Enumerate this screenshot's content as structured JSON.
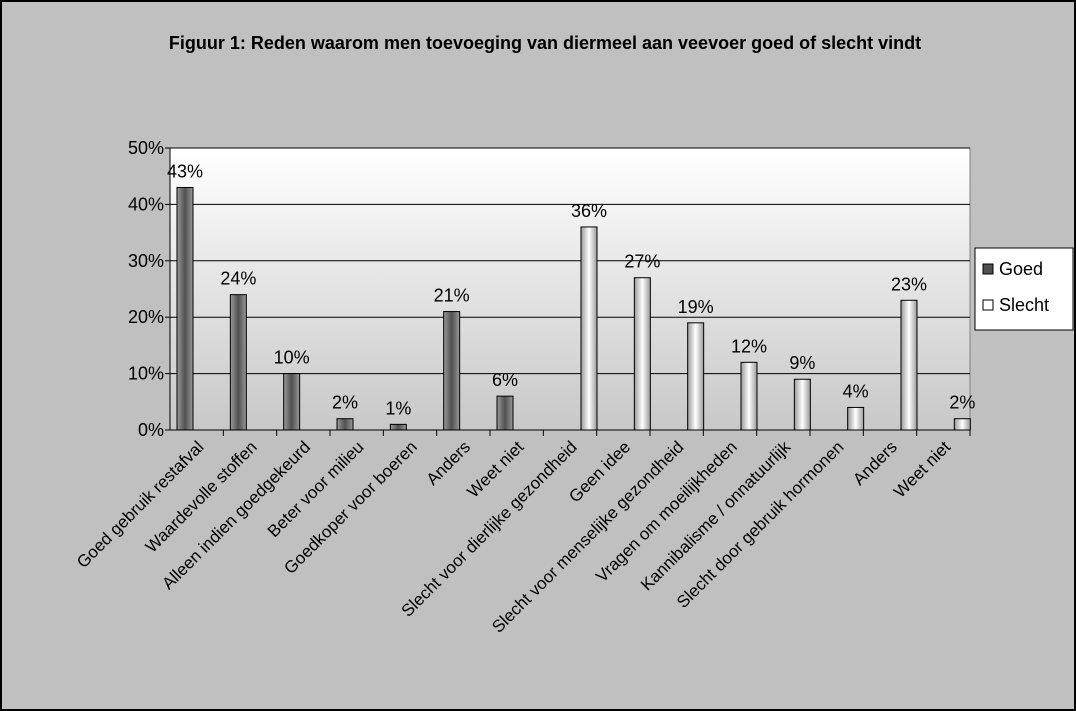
{
  "chart_data": {
    "type": "bar",
    "title": "Figuur 1: Reden waarom men toevoeging van diermeel aan veevoer goed of slecht vindt",
    "categories": [
      "Goed gebruik restafval",
      "Waardevolle stoffen",
      "Alleen indien goedgekeurd",
      "Beter voor milieu",
      "Goedkoper voor boeren",
      "Anders",
      "Weet niet",
      "Slecht voor dierlijke gezondheid",
      "Geen idee",
      "Slecht voor menselijke gezondheid",
      "Vragen om moeilijkheden",
      "Kannibalisme / onnatuurlijk",
      "Slecht door gebruik hormonen",
      "Anders",
      "Weet niet"
    ],
    "series": [
      {
        "name": "Goed",
        "color": "#505050",
        "values": [
          43,
          24,
          10,
          2,
          1,
          21,
          6,
          null,
          null,
          null,
          null,
          null,
          null,
          null,
          null
        ],
        "value_labels": [
          "43%",
          "24%",
          "10%",
          "2%",
          "1%",
          "21%",
          "6%",
          null,
          null,
          null,
          null,
          null,
          null,
          null,
          null
        ]
      },
      {
        "name": "Slecht",
        "color": "#ffffff",
        "values": [
          null,
          null,
          null,
          null,
          null,
          null,
          null,
          36,
          27,
          19,
          12,
          9,
          4,
          23,
          2
        ],
        "value_labels": [
          null,
          null,
          null,
          null,
          null,
          null,
          null,
          "36%",
          "27%",
          "19%",
          "12%",
          "9%",
          "4%",
          "23%",
          "2%"
        ]
      }
    ],
    "ylim": [
      0,
      50
    ],
    "yticks": [
      {
        "value": 0,
        "label": "0%"
      },
      {
        "value": 10,
        "label": "10%"
      },
      {
        "value": 20,
        "label": "20%"
      },
      {
        "value": 30,
        "label": "30%"
      },
      {
        "value": 40,
        "label": "40%"
      },
      {
        "value": 50,
        "label": "50%"
      }
    ],
    "grid": true,
    "legend": "right"
  }
}
